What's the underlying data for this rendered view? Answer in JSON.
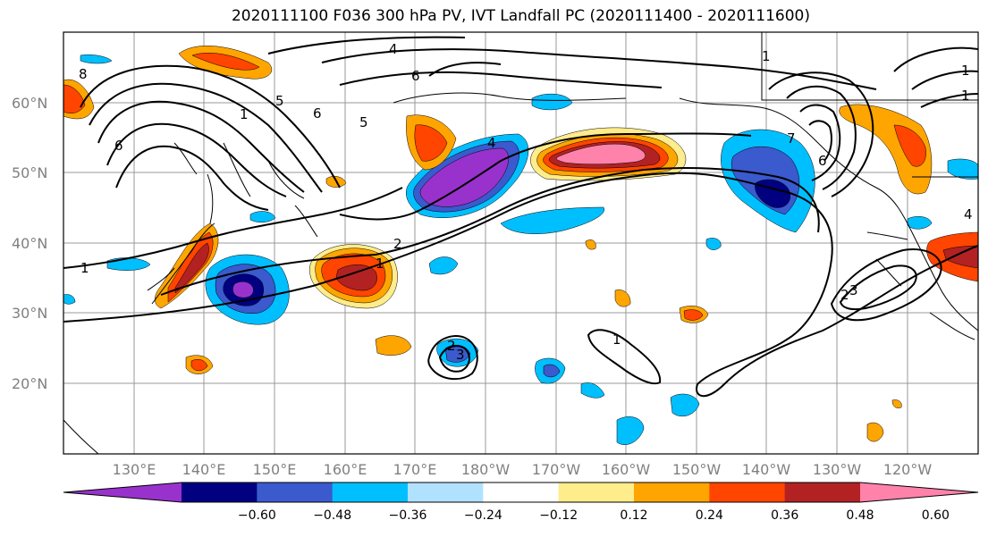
{
  "title": "2020111100 F036 300 hPa PV, IVT Landfall PC (2020111400 - 2020111600)",
  "lat_labels": [
    "60°N",
    "50°N",
    "40°N",
    "30°N",
    "20°N"
  ],
  "lon_labels": [
    "130°E",
    "140°E",
    "150°E",
    "160°E",
    "170°E",
    "180°W",
    "170°W",
    "160°W",
    "150°W",
    "140°W",
    "130°W",
    "120°W"
  ],
  "colorbar": {
    "colors": [
      "#9932cc",
      "#000080",
      "#3a5acd",
      "#00bfff",
      "#b0e2ff",
      "#ffffff",
      "#ffec8b",
      "#ffa500",
      "#ff4500",
      "#b22222",
      "#ff82ab"
    ],
    "labels": [
      "-0.60",
      "-0.48",
      "-0.36",
      "-0.24",
      "-0.12",
      "0.12",
      "0.24",
      "0.36",
      "0.48",
      "0.60"
    ]
  },
  "contour_labels": [
    "8",
    "6",
    "4",
    "6",
    "1",
    "5",
    "6",
    "5",
    "1",
    "4",
    "2",
    "1",
    "2",
    "3",
    "2",
    "1",
    "1",
    "7",
    "6",
    "1",
    "1",
    "4",
    "3"
  ]
}
